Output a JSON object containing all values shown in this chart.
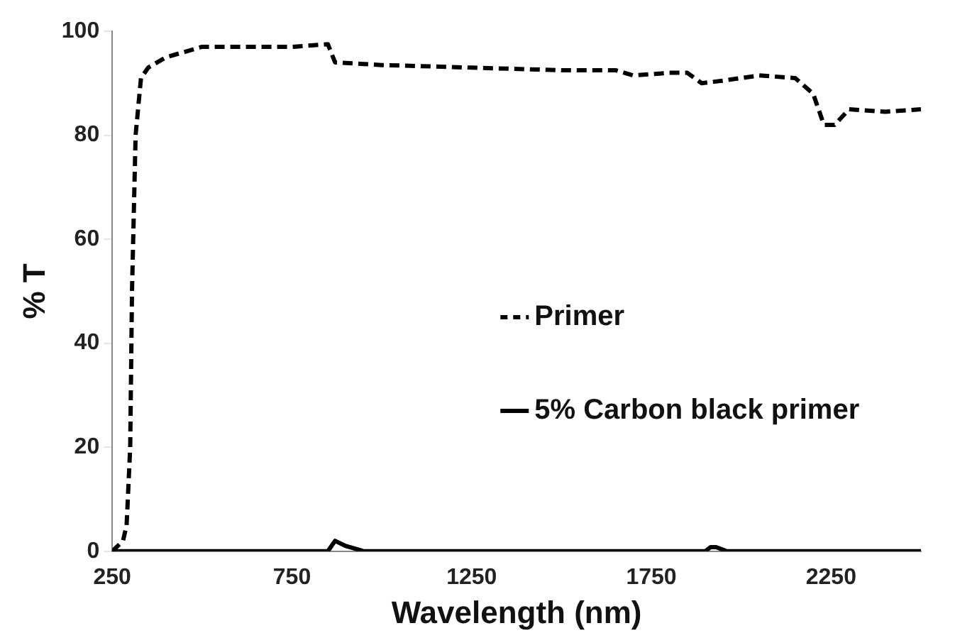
{
  "chart_data": {
    "type": "line",
    "xlabel": "Wavelength (nm)",
    "ylabel": "% T",
    "xlim": [
      250,
      2500
    ],
    "xticks": [
      250,
      750,
      1250,
      1750,
      2250
    ],
    "ylim": [
      0,
      100
    ],
    "yticks": [
      0,
      20,
      40,
      60,
      80,
      100
    ],
    "grid": false,
    "legend": "center right",
    "marker": "none",
    "series": [
      {
        "name": "Primer",
        "color": "#000000",
        "line_style": "dashed",
        "x": [
          250,
          280,
          290,
          300,
          305,
          315,
          330,
          350,
          400,
          500,
          600,
          750,
          850,
          870,
          1000,
          1250,
          1500,
          1650,
          1700,
          1800,
          1850,
          1890,
          1950,
          2050,
          2150,
          2200,
          2230,
          2260,
          2300,
          2400,
          2500
        ],
        "values": [
          0,
          2,
          5,
          20,
          50,
          80,
          91,
          93,
          95,
          97,
          97,
          97,
          97.5,
          94,
          93.5,
          93,
          92.5,
          92.5,
          91.5,
          92,
          92,
          90,
          90.5,
          91.5,
          91,
          88,
          82,
          82,
          85,
          84.5,
          85
        ]
      },
      {
        "name": "5% Carbon black primer",
        "color": "#000000",
        "line_style": "solid",
        "x": [
          250,
          850,
          870,
          900,
          950,
          1850,
          1900,
          1915,
          1930,
          1960,
          2500
        ],
        "values": [
          0,
          0,
          2,
          1,
          0,
          0,
          0,
          0.8,
          0.8,
          0,
          0
        ]
      }
    ]
  }
}
